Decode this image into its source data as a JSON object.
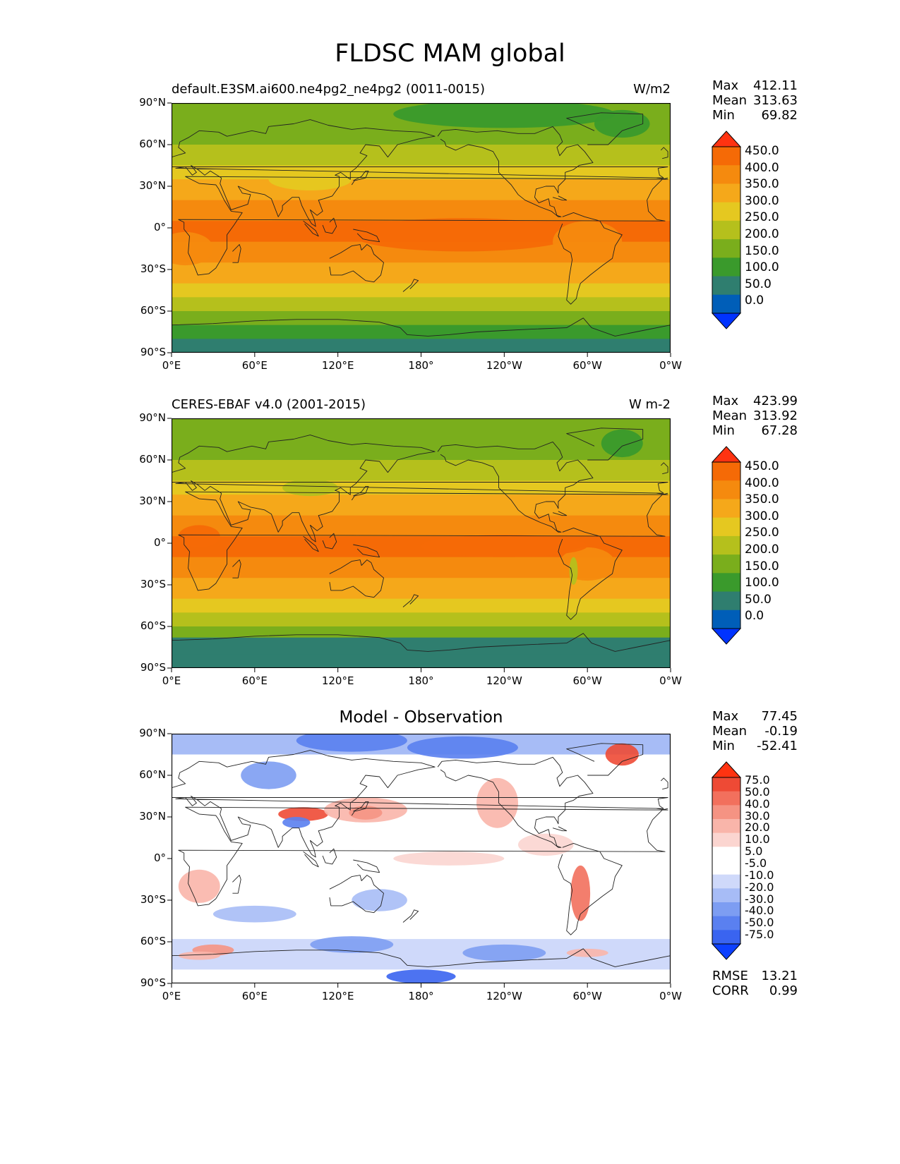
{
  "title": "FLDSC MAM global",
  "panels": [
    {
      "id": "model",
      "left_title": "default.E3SM.ai600.ne4pg2_ne4pg2 (0011-0015)",
      "center_title": "",
      "units": "W/m2",
      "stats": [
        {
          "label": "Max",
          "value": "412.11"
        },
        {
          "label": "Mean",
          "value": "313.63"
        },
        {
          "label": "Min",
          "value": "69.82"
        }
      ],
      "colorbar_labels": [
        "450.0",
        "400.0",
        "350.0",
        "300.0",
        "250.0",
        "200.0",
        "150.0",
        "100.0",
        "50.0",
        "0.0"
      ]
    },
    {
      "id": "obs",
      "left_title": "CERES-EBAF v4.0 (2001-2015)",
      "center_title": "",
      "units": "W m-2",
      "stats": [
        {
          "label": "Max",
          "value": "423.99"
        },
        {
          "label": "Mean",
          "value": "313.92"
        },
        {
          "label": "Min",
          "value": "67.28"
        }
      ],
      "colorbar_labels": [
        "450.0",
        "400.0",
        "350.0",
        "300.0",
        "250.0",
        "200.0",
        "150.0",
        "100.0",
        "50.0",
        "0.0"
      ]
    },
    {
      "id": "diff",
      "left_title": "",
      "center_title": "Model - Observation",
      "units": "",
      "stats": [
        {
          "label": "Max",
          "value": "77.45"
        },
        {
          "label": "Mean",
          "value": "-0.19"
        },
        {
          "label": "Min",
          "value": "-52.41"
        }
      ],
      "colorbar_labels": [
        "75.0",
        "50.0",
        "40.0",
        "30.0",
        "20.0",
        "10.0",
        "5.0",
        "-5.0",
        "-10.0",
        "-20.0",
        "-30.0",
        "-40.0",
        "-50.0",
        "-75.0"
      ],
      "metrics": [
        {
          "label": "RMSE",
          "value": "13.21"
        },
        {
          "label": "CORR",
          "value": "0.99"
        }
      ]
    }
  ],
  "y_ticks": [
    "90°N",
    "60°N",
    "30°N",
    "0°",
    "30°S",
    "60°S",
    "90°S"
  ],
  "x_ticks": [
    "0°E",
    "60°E",
    "120°E",
    "180°",
    "120°W",
    "60°W",
    "0°W"
  ],
  "colors": {
    "abs_scale": [
      "#0033ff",
      "#005eb8",
      "#2f7e6f",
      "#3a9a2c",
      "#7aae1c",
      "#b5c01c",
      "#e5c820",
      "#f5a81a",
      "#f58a0e",
      "#f56a06",
      "#ff3311"
    ],
    "diff_scale": [
      "#0d40ff",
      "#3a64f0",
      "#5a80f0",
      "#7d9df2",
      "#a7bcf6",
      "#cfd9fa",
      "#ffffff",
      "#ffffff",
      "#fbd5d0",
      "#f9b5aa",
      "#f59383",
      "#f2705d",
      "#ee4a35",
      "#ff3311"
    ]
  }
}
